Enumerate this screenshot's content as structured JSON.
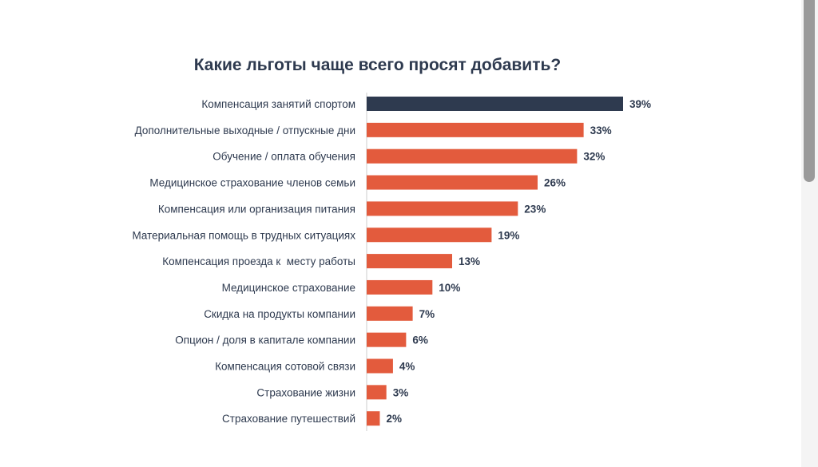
{
  "chart_data": {
    "type": "bar",
    "orientation": "horizontal",
    "title": "Какие льготы чаще всего просят добавить?",
    "categories": [
      "Компенсация занятий спортом",
      "Дополнительные выходные / отпускные дни",
      "Обучение / оплата обучения",
      "Медицинское страхование членов семьи",
      "Компенсация или организация питания",
      "Материальная помощь в трудных ситуациях",
      "Компенсация проезда к  месту работы",
      "Медицинское страхование",
      "Скидка на продукты компании",
      "Опцион / доля в капитале компании",
      "Компенсация сотовой связи",
      "Страхование жизни",
      "Страхование путешествий"
    ],
    "values": [
      39,
      33,
      32,
      26,
      23,
      19,
      13,
      10,
      7,
      6,
      4,
      3,
      2
    ],
    "value_labels": [
      "39%",
      "33%",
      "32%",
      "26%",
      "23%",
      "19%",
      "13%",
      "10%",
      "7%",
      "6%",
      "4%",
      "3%",
      "2%"
    ],
    "unit": "%",
    "xlim": [
      0,
      39
    ],
    "grid": false,
    "legend": "none",
    "colors": {
      "highlight": "#2e3a4f",
      "default": "#e35b3d",
      "text": "#2e3a4f",
      "axis": "#cccccc"
    },
    "highlight_index": 0
  }
}
